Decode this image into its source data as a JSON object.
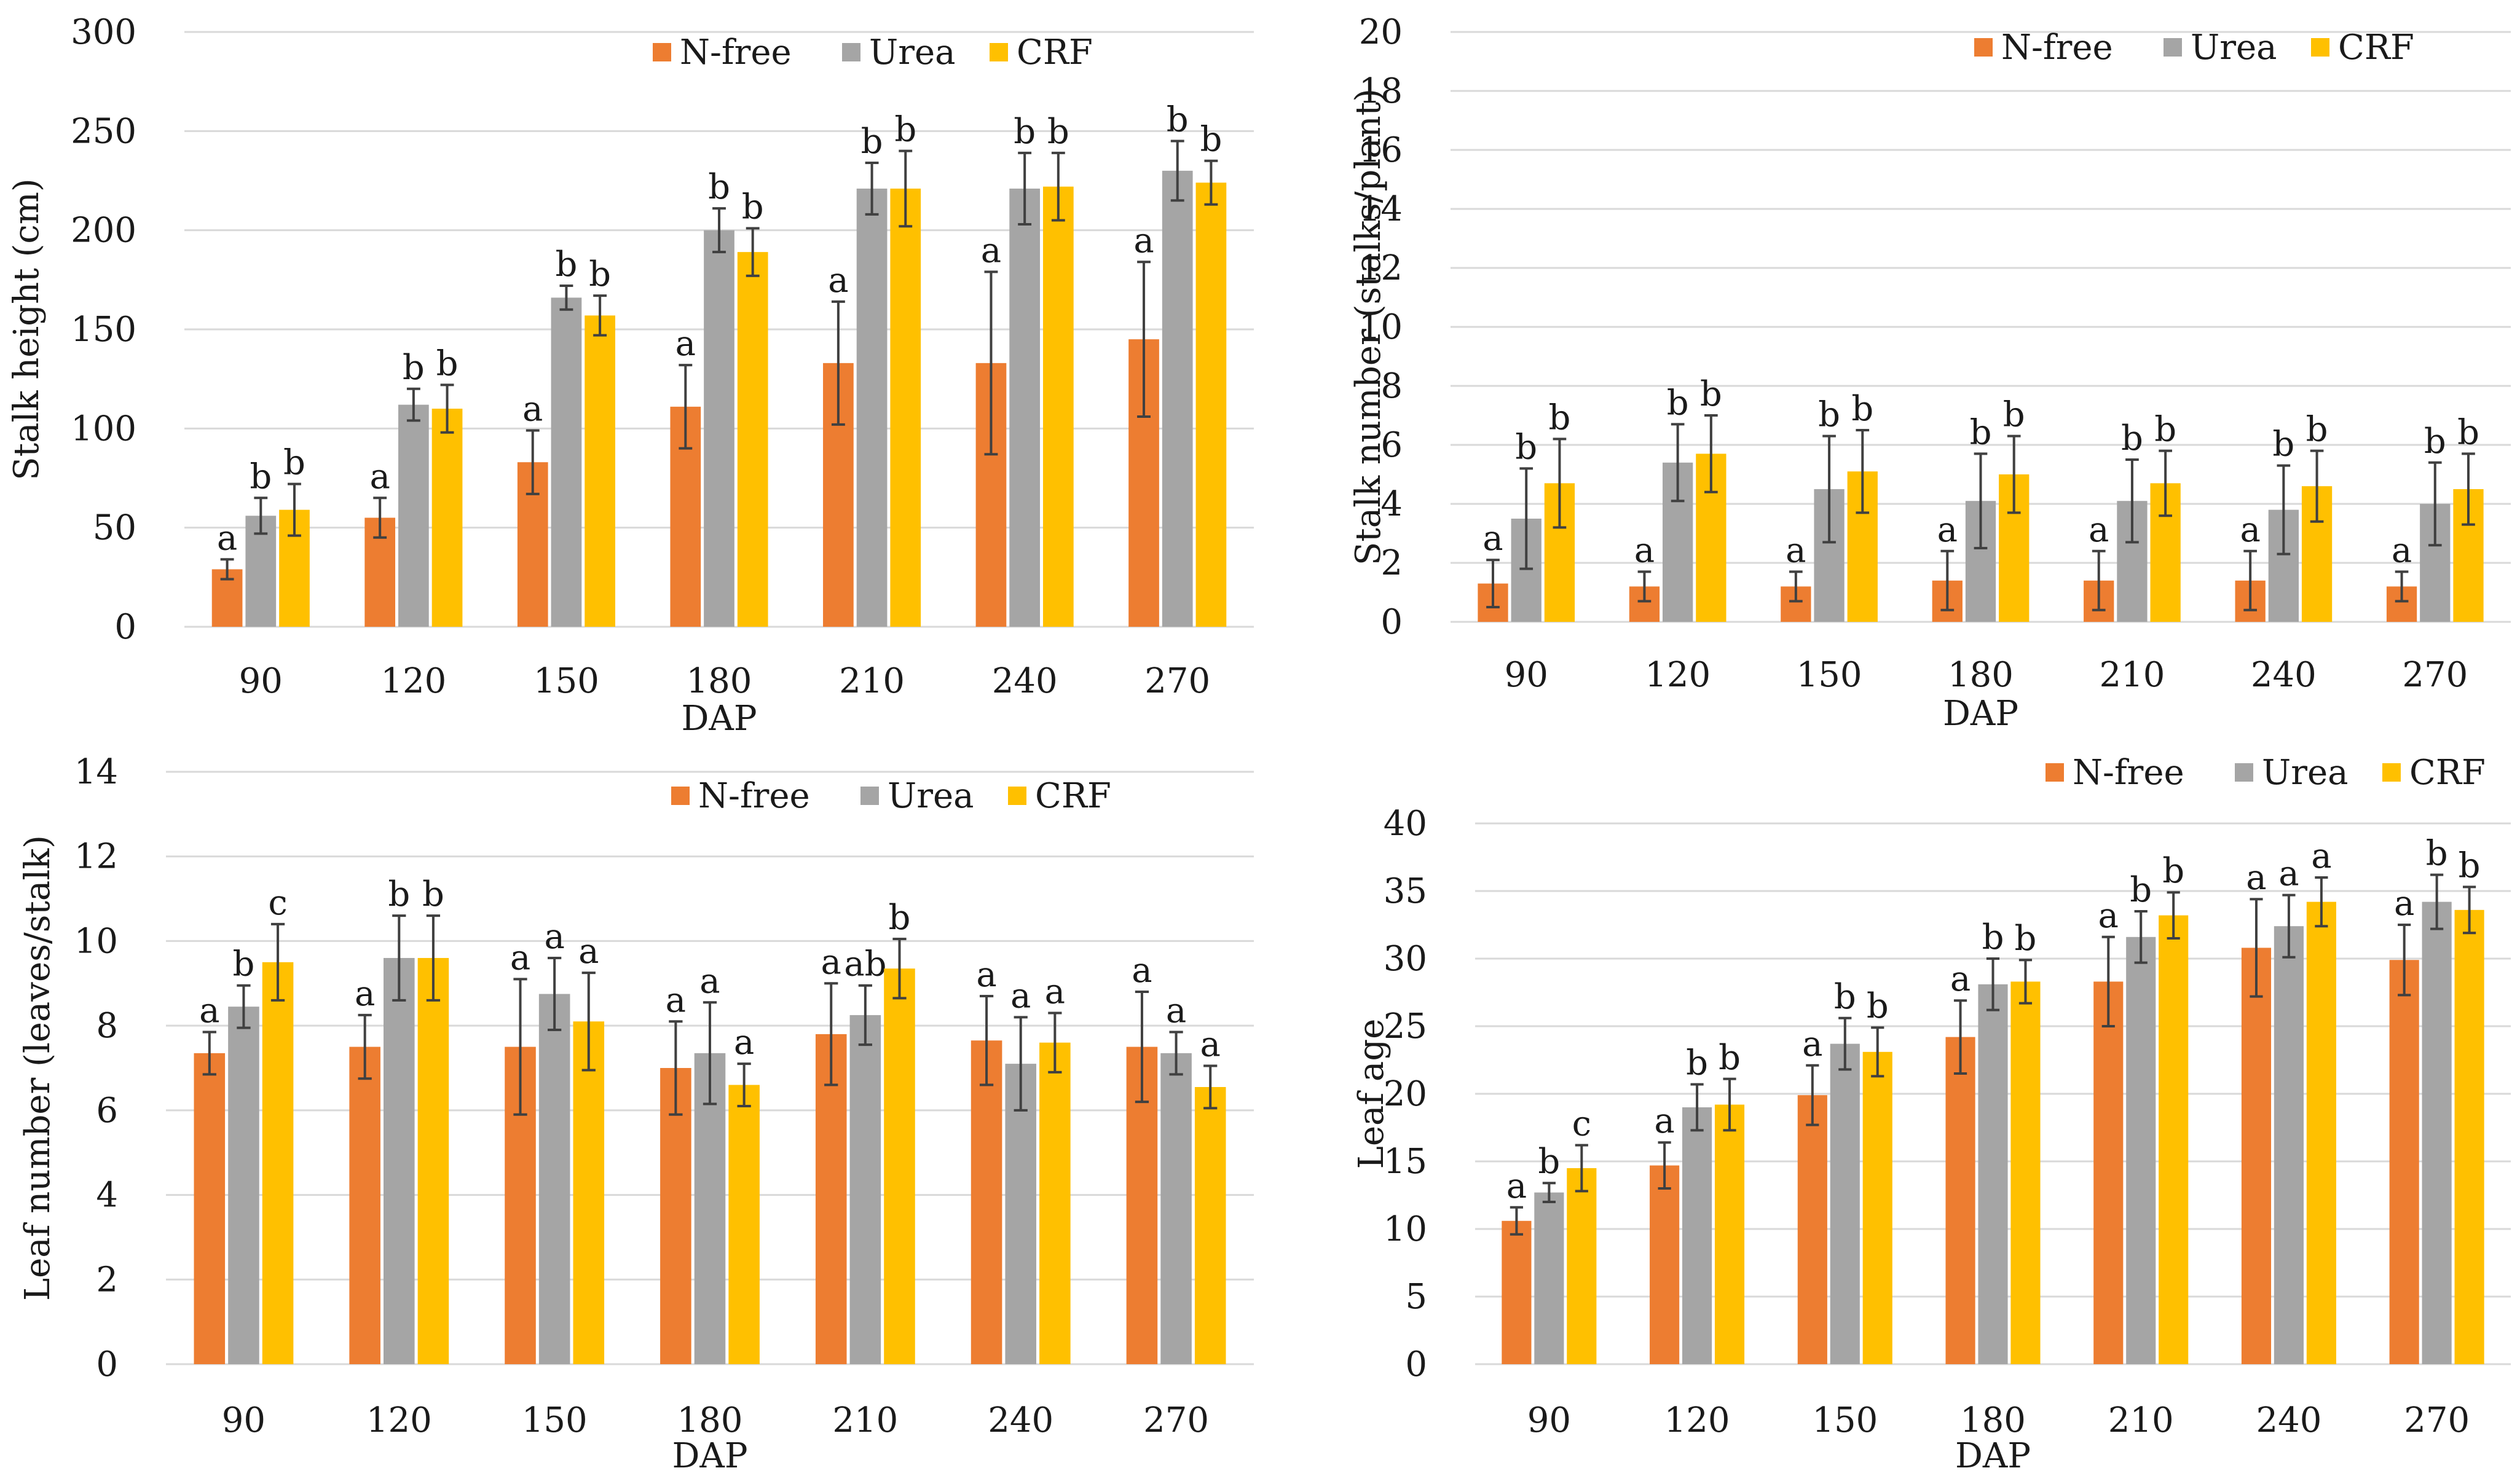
{
  "colors": {
    "n_free": "#ED7D31",
    "urea": "#A5A5A5",
    "crf": "#FFC000",
    "grid": "#D9D9D9"
  },
  "legend": [
    "N-free",
    "Urea",
    "CRF"
  ],
  "chart_data": [
    {
      "id": "stalk-height",
      "type": "bar",
      "title": "",
      "xlabel": "DAP",
      "ylabel": "Stalk height (cm)",
      "categories": [
        "90",
        "120",
        "150",
        "180",
        "210",
        "240",
        "270"
      ],
      "ylim": [
        0,
        300
      ],
      "yticks": [
        0,
        50,
        100,
        150,
        200,
        250,
        300
      ],
      "grid": true,
      "legend_position": "top-right",
      "series": [
        {
          "name": "N-free",
          "values": [
            29,
            55,
            83,
            111,
            133,
            133,
            145
          ],
          "errors": [
            5,
            10,
            16,
            21,
            31,
            46,
            39
          ],
          "labels": [
            "a",
            "a",
            "a",
            "a",
            "a",
            "a",
            "a"
          ]
        },
        {
          "name": "Urea",
          "values": [
            56,
            112,
            166,
            200,
            221,
            221,
            230
          ],
          "errors": [
            9,
            8,
            6,
            11,
            13,
            18,
            15
          ],
          "labels": [
            "b",
            "b",
            "b",
            "b",
            "b",
            "b",
            "b"
          ]
        },
        {
          "name": "CRF",
          "values": [
            59,
            110,
            157,
            189,
            221,
            222,
            224
          ],
          "errors": [
            13,
            12,
            10,
            12,
            19,
            17,
            11
          ],
          "labels": [
            "b",
            "b",
            "b",
            "b",
            "b",
            "b",
            "b"
          ]
        }
      ]
    },
    {
      "id": "stalk-number",
      "type": "bar",
      "title": "",
      "xlabel": "DAP",
      "ylabel": "Stalk number (stalks/plant)",
      "categories": [
        "90",
        "120",
        "150",
        "180",
        "210",
        "240",
        "270"
      ],
      "ylim": [
        0,
        20
      ],
      "yticks": [
        0,
        2,
        4,
        6,
        8,
        10,
        12,
        14,
        16,
        18,
        20
      ],
      "grid": true,
      "legend_position": "top-right",
      "series": [
        {
          "name": "N-free",
          "values": [
            1.3,
            1.2,
            1.2,
            1.4,
            1.4,
            1.4,
            1.2
          ],
          "errors": [
            0.8,
            0.5,
            0.5,
            1.0,
            1.0,
            1.0,
            0.5
          ],
          "labels": [
            "a",
            "a",
            "a",
            "a",
            "a",
            "a",
            "a"
          ]
        },
        {
          "name": "Urea",
          "values": [
            3.5,
            5.4,
            4.5,
            4.1,
            4.1,
            3.8,
            4.0
          ],
          "errors": [
            1.7,
            1.3,
            1.8,
            1.6,
            1.4,
            1.5,
            1.4
          ],
          "labels": [
            "b",
            "b",
            "b",
            "b",
            "b",
            "b",
            "b"
          ]
        },
        {
          "name": "CRF",
          "values": [
            4.7,
            5.7,
            5.1,
            5.0,
            4.7,
            4.6,
            4.5
          ],
          "errors": [
            1.5,
            1.3,
            1.4,
            1.3,
            1.1,
            1.2,
            1.2
          ],
          "labels": [
            "b",
            "b",
            "b",
            "b",
            "b",
            "b",
            "b"
          ]
        }
      ]
    },
    {
      "id": "leaf-number",
      "type": "bar",
      "title": "",
      "xlabel": "DAP",
      "ylabel": "Leaf number (leaves/stalk)",
      "categories": [
        "90",
        "120",
        "150",
        "180",
        "210",
        "240",
        "270"
      ],
      "ylim": [
        0,
        14
      ],
      "yticks": [
        0,
        2,
        4,
        6,
        8,
        10,
        12,
        14
      ],
      "grid": true,
      "legend_position": "top-right",
      "series": [
        {
          "name": "N-free",
          "values": [
            7.35,
            7.5,
            7.5,
            7.0,
            7.8,
            7.65,
            7.5
          ],
          "errors": [
            0.5,
            0.75,
            1.6,
            1.1,
            1.2,
            1.05,
            1.3
          ],
          "labels": [
            "a",
            "a",
            "a",
            "a",
            "a",
            "a",
            "a"
          ]
        },
        {
          "name": "Urea",
          "values": [
            8.45,
            9.6,
            8.75,
            7.35,
            8.25,
            7.1,
            7.35
          ],
          "errors": [
            0.5,
            1.0,
            0.85,
            1.2,
            0.7,
            1.1,
            0.5
          ],
          "labels": [
            "b",
            "b",
            "a",
            "a",
            "ab",
            "a",
            "a"
          ]
        },
        {
          "name": "CRF",
          "values": [
            9.5,
            9.6,
            8.1,
            6.6,
            9.35,
            7.6,
            6.55
          ],
          "errors": [
            0.9,
            1.0,
            1.15,
            0.5,
            0.7,
            0.7,
            0.5
          ],
          "labels": [
            "c",
            "b",
            "a",
            "a",
            "b",
            "a",
            "a"
          ]
        }
      ]
    },
    {
      "id": "leaf-age",
      "type": "bar",
      "title": "",
      "xlabel": "DAP",
      "ylabel": "Leaf age",
      "categories": [
        "90",
        "120",
        "150",
        "180",
        "210",
        "240",
        "270"
      ],
      "ylim": [
        0,
        40
      ],
      "yticks": [
        0,
        5,
        10,
        15,
        20,
        25,
        30,
        35,
        40
      ],
      "grid": true,
      "legend_position": "top-right",
      "series": [
        {
          "name": "N-free",
          "values": [
            10.6,
            14.7,
            19.9,
            24.2,
            28.3,
            30.8,
            29.9
          ],
          "errors": [
            1.0,
            1.7,
            2.2,
            2.7,
            3.3,
            3.6,
            2.6
          ],
          "labels": [
            "a",
            "a",
            "a",
            "a",
            "a",
            "a",
            "a"
          ]
        },
        {
          "name": "Urea",
          "values": [
            12.7,
            19.0,
            23.7,
            28.1,
            31.6,
            32.4,
            34.2
          ],
          "errors": [
            0.7,
            1.7,
            1.9,
            1.9,
            1.9,
            2.3,
            2.0
          ],
          "labels": [
            "b",
            "b",
            "b",
            "b",
            "b",
            "a",
            "b"
          ]
        },
        {
          "name": "CRF",
          "values": [
            14.5,
            19.2,
            23.1,
            28.3,
            33.2,
            34.2,
            33.6
          ],
          "errors": [
            1.7,
            1.9,
            1.8,
            1.6,
            1.7,
            1.8,
            1.7
          ],
          "labels": [
            "c",
            "b",
            "b",
            "b",
            "b",
            "a",
            "b"
          ]
        }
      ]
    }
  ]
}
